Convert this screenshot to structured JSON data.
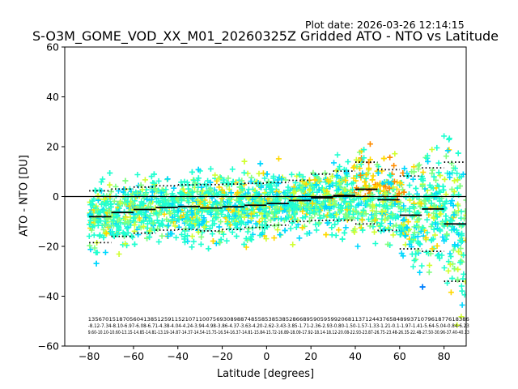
{
  "plot_date": "Plot date: 2026-03-26 12:14:15",
  "chart_data": {
    "type": "scatter",
    "title": "S-O3M_GOME_VOD_XX_M01_20260325Z Gridded ATO - NTO vs Latitude",
    "xlabel": "Latitude [degrees]",
    "ylabel": "ATO - NTO [DU]",
    "xlim": [
      -91,
      90
    ],
    "ylim": [
      -60,
      60
    ],
    "xticks": [
      -80,
      -60,
      -40,
      -20,
      0,
      20,
      40,
      60,
      80
    ],
    "yticks": [
      -60,
      -40,
      -20,
      0,
      20,
      40,
      60
    ],
    "marker": "+",
    "colormap_colors": [
      "#0000d8",
      "#0080ff",
      "#00d8ff",
      "#20ffd0",
      "#80ff80",
      "#d0ff30",
      "#ffd800",
      "#ff8c00"
    ],
    "zero_line": 0,
    "bin_centers": [
      -75,
      -65,
      -55,
      -45,
      -35,
      -25,
      -15,
      -5,
      5,
      15,
      25,
      35,
      45,
      55,
      65,
      75,
      85
    ],
    "bin_stats": {
      "mean": [
        -8.1,
        -6.4,
        -5.2,
        -4.4,
        -4.0,
        -4.6,
        -4.1,
        -3.5,
        -2.8,
        -1.6,
        -0.5,
        0.4,
        2.9,
        -1.3,
        -7.5,
        -5.0,
        -11.0
      ],
      "plus_sd": [
        2.3,
        3.0,
        3.8,
        4.3,
        4.7,
        4.8,
        5.0,
        5.3,
        5.6,
        6.5,
        9.0,
        10.2,
        13.8,
        10.8,
        8.2,
        11.5,
        13.8
      ],
      "minus_sd": [
        -18.5,
        -16.0,
        -14.7,
        -13.5,
        -13.2,
        -13.8,
        -13.2,
        -12.4,
        -11.5,
        -10.0,
        -9.6,
        -9.5,
        -11.0,
        -13.6,
        -21.0,
        -22.0,
        -34.0
      ]
    },
    "bin_label_rows": [
      "13567015187056041385125911521071100756930898874855853853852866895905959920681137124437658489937107961877618386",
      "-8.12-7.34-8.10-6.97-6.08-6.71-4.38-4.04-4.24-3.94-4.98-3.86-4.37-3.63-4.20-2.62-3.43-3.85-1.71-2.36-2.93-0.80-1.50-1.57-1.33-1.21-0.1-1.97-1.41-5.64-5.04-0.84-6.23",
      "9.60-10.10-10.60-13.15-14.85-14.81-13.19-14.87-14.37-14.54-15.75-16.54-16.37-14.81-15.84-15.72-16.89-18.09-17.92-18.14-18.12-20.08-22.93-23.87-26.75-23.48-26.35-22.48-27.50-30.96-37.40-40.13"
    ]
  }
}
